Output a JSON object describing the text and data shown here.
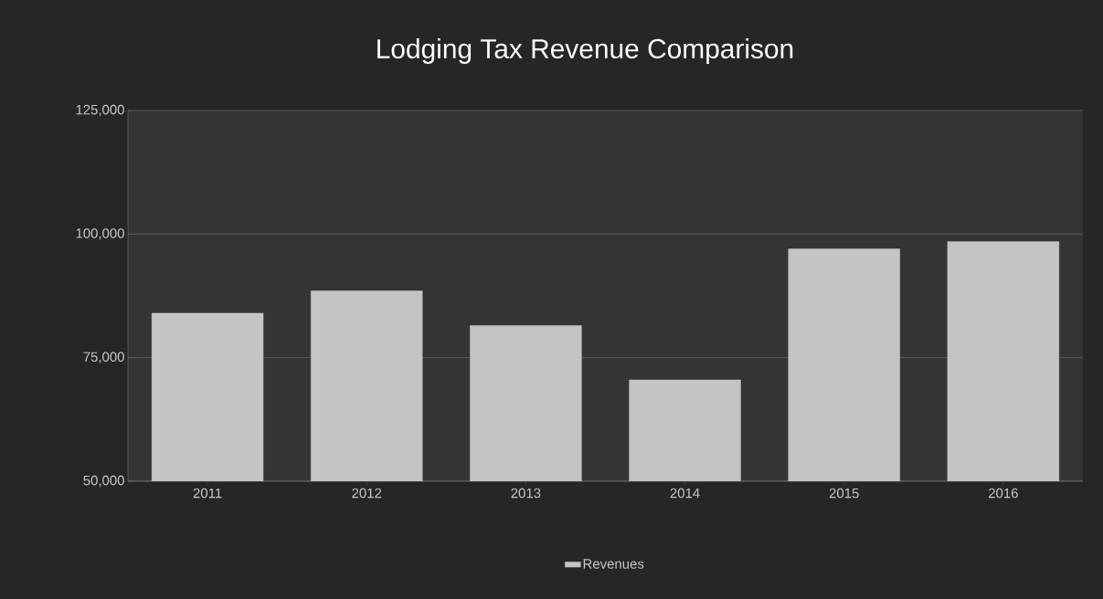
{
  "chart_data": {
    "type": "bar",
    "title": "Lodging Tax Revenue Comparison",
    "categories": [
      "2011",
      "2012",
      "2013",
      "2014",
      "2015",
      "2016"
    ],
    "series": [
      {
        "name": "Revenues",
        "color": "#c4c4c4",
        "values": [
          84000,
          88500,
          81500,
          70500,
          97000,
          98500
        ]
      }
    ],
    "ylim": [
      50000,
      125000
    ],
    "yticks": [
      {
        "value": 50000,
        "label": "50,000"
      },
      {
        "value": 75000,
        "label": "75,000"
      },
      {
        "value": 100000,
        "label": "100,000"
      },
      {
        "value": 125000,
        "label": "125,000"
      }
    ],
    "grid": "y",
    "legend": "bottom"
  }
}
